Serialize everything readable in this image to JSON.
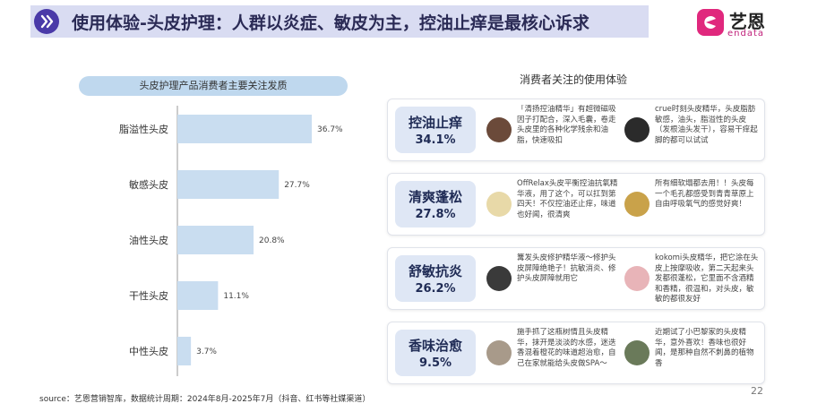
{
  "header": {
    "title": "使用体验-头皮护理：人群以炎症、敏皮为主，控油止痒是最核心诉求"
  },
  "logo": {
    "cn": "艺恩",
    "en": "endata",
    "icon": "endata-logo-icon"
  },
  "chart_data": {
    "type": "bar",
    "orientation": "horizontal",
    "title": "头皮护理产品消费者主要关注发质",
    "categories": [
      "脂溢性头皮",
      "敏感头皮",
      "油性头皮",
      "干性头皮",
      "中性头皮"
    ],
    "values": [
      36.7,
      27.7,
      20.8,
      11.1,
      3.7
    ],
    "value_labels": [
      "36.7%",
      "27.7%",
      "20.8%",
      "11.1%",
      "3.7%"
    ],
    "bar_color": "#c9ddf0",
    "grid": false
  },
  "right_panel": {
    "title": "消费者关注的使用体验",
    "cards": [
      {
        "name": "控油止痒",
        "pct": "34.1%",
        "q1": "「清扬控油精华」有超微磁吸因子打配合，深入毛囊，卷走头皮里的各种化学残余和油脂，快速吸扣",
        "q2": "crue时刻头皮精华，头皮脂肪敏感，油头，脂溢性的头皮（发根油头发干），容易干痒起脚的都可以试试"
      },
      {
        "name": "清爽蓬松",
        "pct": "27.8%",
        "q1": "OffRelax头皮平衡控油抗氧精华液，用了这个，可以扛到第四天！不仅控油还止痒，味道也好闻，很清爽",
        "q2": "所有细软塌都去用！！头皮每一个毛孔都感受到青青草原上自由呼吸氧气的感觉好爽！"
      },
      {
        "name": "舒敏抗炎",
        "pct": "26.2%",
        "q1": "篝发头皮修护精华液～修护头皮屏障绝艳子！抗敏消炎、修护头皮屏障就用它",
        "q2": "kokomi头皮精华，把它涂在头皮上按摩吸收，第二天起来头发都很蓬松，它里面不含酒精和香精，很温和，对头皮，敏敏的都很友好"
      },
      {
        "name": "香味治愈",
        "pct": "9.5%",
        "q1": "施手抓了这瓶树情且头皮精华，抹开是淡淡的水感，迷迭香混着橙花的味道超治愈，自己在家就能给头皮做SPA～",
        "q2": "近期试了小巴黎家的头皮精华，意外喜欢！香味也很好闻，是那种自然不刺鼻的植物香"
      }
    ]
  },
  "footer": {
    "source": "source：艺恩营销智库，数据统计周期：2024年8月-2025年7月（抖音、红书等社媒渠道）"
  },
  "page_number": "22"
}
